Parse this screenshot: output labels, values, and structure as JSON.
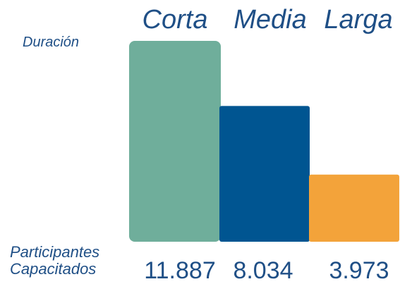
{
  "chart_data": {
    "type": "bar",
    "categories": [
      "Corta",
      "Media",
      "Larga"
    ],
    "values": [
      11887,
      8034,
      3973
    ],
    "value_labels": [
      "11.887",
      "8.034",
      "3.973"
    ],
    "row_labels": {
      "top": "Duración",
      "bottom": [
        "Participantes",
        "Capacitados"
      ]
    },
    "colors": [
      "#6fae9b",
      "#005591",
      "#f3a33a"
    ],
    "text_color": "#1f4f86",
    "ylim": [
      0,
      11887
    ],
    "grid": false,
    "legend": "none"
  }
}
